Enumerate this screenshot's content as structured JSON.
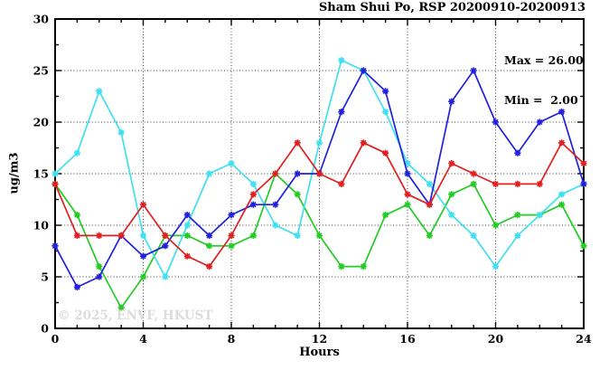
{
  "chart_data": {
    "type": "line",
    "title": "Sham Shui Po, RSP 20200910-20200913",
    "xlabel": "Hours",
    "ylabel": "ug/m3",
    "xlim": [
      0,
      24
    ],
    "ylim": [
      0,
      30
    ],
    "xticks": [
      0,
      4,
      8,
      12,
      16,
      20,
      24
    ],
    "yticks": [
      0,
      5,
      10,
      15,
      20,
      25,
      30
    ],
    "grid": true,
    "legend_position": "none",
    "annotations": [
      "Max = 26.00",
      "Min =  2.00"
    ],
    "watermark": "© 2025, ENVF, HKUST",
    "x": [
      0,
      1,
      2,
      3,
      4,
      5,
      6,
      7,
      8,
      9,
      10,
      11,
      12,
      13,
      14,
      15,
      16,
      17,
      18,
      19,
      20,
      21,
      22,
      23,
      24
    ],
    "series": [
      {
        "name": "green-day-line",
        "color": "#22cc22",
        "values": [
          14,
          11,
          6,
          2,
          5,
          9,
          9,
          8,
          8,
          9,
          15,
          13,
          9,
          6,
          6,
          11,
          12,
          9,
          13,
          14,
          10,
          11,
          11,
          12,
          8
        ]
      },
      {
        "name": "cyan-day-line",
        "color": "#3fe0ef",
        "values": [
          15,
          17,
          23,
          19,
          9,
          5,
          10,
          15,
          16,
          14,
          10,
          9,
          18,
          26,
          25,
          21,
          16,
          14,
          11,
          9,
          6,
          9,
          11,
          13,
          14
        ]
      },
      {
        "name": "blue-day-line",
        "color": "#2020dd",
        "values": [
          8,
          4,
          5,
          9,
          7,
          8,
          11,
          9,
          11,
          12,
          12,
          15,
          15,
          21,
          25,
          23,
          15,
          12,
          22,
          25,
          20,
          17,
          20,
          21,
          14
        ]
      },
      {
        "name": "red-day-line",
        "color": "#e02020",
        "values": [
          14,
          9,
          9,
          9,
          12,
          9,
          7,
          6,
          9,
          13,
          15,
          18,
          15,
          14,
          18,
          17,
          13,
          12,
          16,
          15,
          14,
          14,
          14,
          18,
          16
        ]
      }
    ],
    "stats": {
      "max": 26.0,
      "min": 2.0
    }
  }
}
